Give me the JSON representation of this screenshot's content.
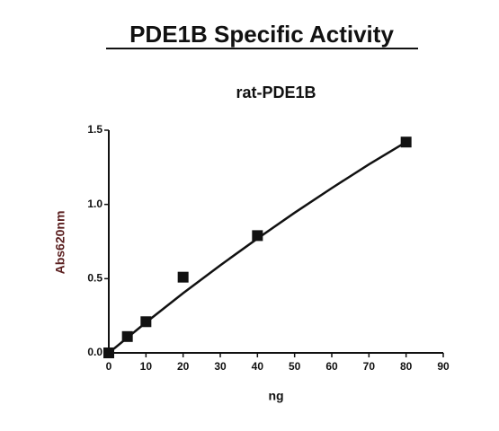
{
  "chart_data": {
    "type": "scatter",
    "title": "PDE1B Specific Activity",
    "subtitle": "rat-PDE1B",
    "x_label": "ng",
    "y_label": "Abs620nm",
    "xlim": [
      0,
      90
    ],
    "ylim": [
      0,
      1.5
    ],
    "xticks": [
      0,
      10,
      20,
      30,
      40,
      50,
      60,
      70,
      80,
      90
    ],
    "yticks": [
      {
        "value": 0,
        "label": "0.0"
      },
      0.5,
      {
        "value": 1,
        "label": "1.0"
      },
      1.5
    ],
    "color": "#111111",
    "series": [
      {
        "style": "markers",
        "x": [
          0,
          5,
          10,
          20,
          40,
          80
        ],
        "values": [
          0,
          0.11,
          0.21,
          0.51,
          0.79,
          1.42
        ]
      },
      {
        "style": "line",
        "x": [
          0,
          10,
          20,
          30,
          40,
          50,
          60,
          70,
          80
        ],
        "values": [
          0,
          0.205,
          0.402,
          0.59,
          0.77,
          0.944,
          1.11,
          1.27,
          1.42
        ]
      }
    ]
  }
}
